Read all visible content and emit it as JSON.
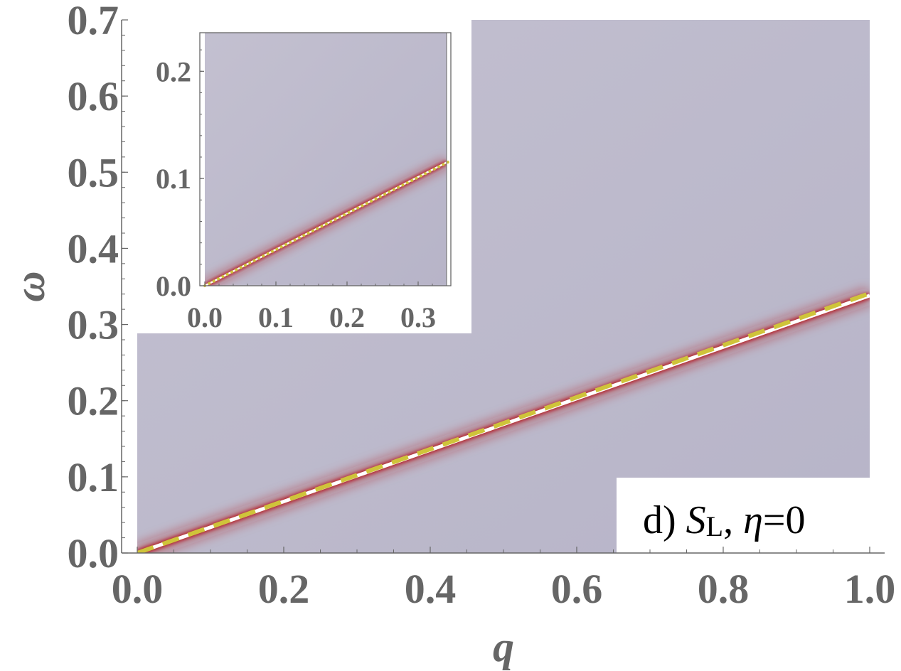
{
  "chart_data": [
    {
      "type": "heatmap",
      "panel_label": "d)",
      "quantity_symbol": "S",
      "quantity_subscript": "L",
      "param_symbol": "η",
      "param_value": "=0",
      "punctuation": ",",
      "xlabel": "q",
      "ylabel": "ω",
      "xlim": [
        0.0,
        1.0
      ],
      "ylim": [
        0.0,
        0.7
      ],
      "x_ticks": [
        "0.0",
        "0.2",
        "0.4",
        "0.6",
        "0.8",
        "1.0"
      ],
      "y_ticks": [
        "0.0",
        "0.1",
        "0.2",
        "0.3",
        "0.4",
        "0.5",
        "0.6",
        "0.7"
      ],
      "x_minor_step": 0.05,
      "y_minor_step": 0.02,
      "background_color": "#bcb9cb",
      "peak_color": "#b0101a",
      "series": [
        {
          "role": "peak",
          "color": "#ffffff",
          "x": [
            0.0,
            1.0
          ],
          "y": [
            0.0,
            0.338
          ]
        },
        {
          "role": "fit",
          "style": "dashed",
          "color": "#cfc43a",
          "x": [
            0.0,
            1.0
          ],
          "y": [
            0.0,
            0.341
          ]
        }
      ]
    },
    {
      "type": "heatmap",
      "role": "inset",
      "xlim": [
        0.0,
        0.34
      ],
      "ylim": [
        0.0,
        0.236
      ],
      "x_ticks": [
        "0.0",
        "0.1",
        "0.2",
        "0.3"
      ],
      "y_ticks": [
        "0.0",
        "0.1",
        "0.2"
      ],
      "x_minor_step": 0.02,
      "y_minor_step": 0.02,
      "background_color": "#bcb9cb",
      "peak_color": "#b0101a",
      "series": [
        {
          "role": "peak",
          "color": "#ffffff",
          "x": [
            0.0,
            0.34
          ],
          "y": [
            0.0,
            0.115
          ]
        },
        {
          "role": "fit",
          "style": "dotted",
          "color": "#cfc43a",
          "x": [
            0.0,
            0.347
          ],
          "y": [
            0.0,
            0.117
          ]
        }
      ]
    }
  ]
}
